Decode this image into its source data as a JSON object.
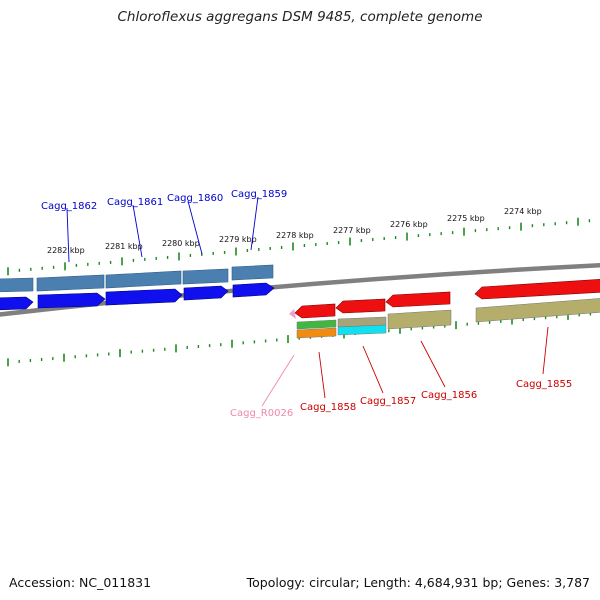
{
  "title": "Chloroflexus aggregans DSM 9485, complete genome",
  "footer": {
    "accession_text": "Accession: NC_011831",
    "meta_text": "Topology: circular; Length: 4,684,931 bp; Genes: 3,787"
  },
  "colors": {
    "backbone": "#808080",
    "tick": "#1f8a1f",
    "forward_gene_label": "#0000cc",
    "reverse_gene_label": "#cc0000",
    "rna_label": "#ee88aa",
    "cds_forward": "#1010ee",
    "cds_reverse": "#ee1010",
    "cog_forward": "#4a7faf",
    "cog_olive": "#b4ad6c",
    "cog_green": "#40b840",
    "cog_orange": "#f08c10",
    "cog_cyan": "#10e0f0",
    "cog_gray": "#a8a47a",
    "rna_feature": "#f0a0d0"
  },
  "scale_labels": [
    "2282 kbp",
    "2281 kbp",
    "2280 kbp",
    "2279 kbp",
    "2278 kbp",
    "2277 kbp",
    "2276 kbp",
    "2275 kbp",
    "2274 kbp"
  ],
  "forward_genes": [
    "Cagg_1862",
    "Cagg_1861",
    "Cagg_1860",
    "Cagg_1859"
  ],
  "reverse_genes": [
    "Cagg_R0026",
    "Cagg_1858",
    "Cagg_1857",
    "Cagg_1856",
    "Cagg_1855"
  ]
}
